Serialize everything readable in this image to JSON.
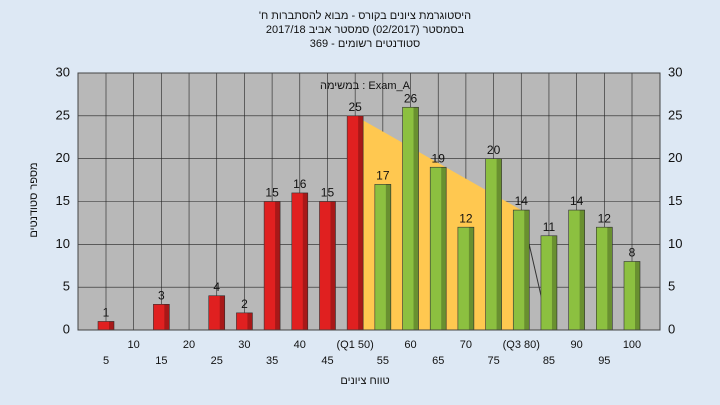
{
  "chart_data": {
    "type": "bar",
    "title": [
      "היסטוגרמת ציונים בקורס - מבוא להסתברות ח'",
      "בסמסטר (02/2017) סמסטר אביב 2017/18",
      "סטודנטים רשומים - 369"
    ],
    "annotation": "במשימה : Exam_A",
    "y_label": "מספר סטודנטים",
    "x_label": "טווח ציונים",
    "categories": [
      "5",
      "10",
      "15",
      "20",
      "25",
      "30",
      "35",
      "40",
      "45",
      "(Q1 50)",
      "55",
      "60",
      "65",
      "70",
      "75",
      "(Q3 80)",
      "85",
      "90",
      "95",
      "100"
    ],
    "values": [
      1,
      0,
      3,
      0,
      4,
      2,
      15,
      16,
      15,
      25,
      17,
      26,
      19,
      12,
      20,
      14,
      11,
      14,
      12,
      8
    ],
    "colors": [
      "#e02020",
      "#e02020",
      "#e02020",
      "#e02020",
      "#e02020",
      "#e02020",
      "#e02020",
      "#e02020",
      "#e02020",
      "#e02020",
      "#8cc040",
      "#8cc040",
      "#8cc040",
      "#8cc040",
      "#8cc040",
      "#8cc040",
      "#8cc040",
      "#8cc040",
      "#8cc040",
      "#8cc040"
    ],
    "highlight_color": "#ffc850",
    "ylim": [
      0,
      30
    ],
    "yticks": [
      0,
      5,
      10,
      15,
      20,
      25,
      30
    ],
    "grid": true
  }
}
